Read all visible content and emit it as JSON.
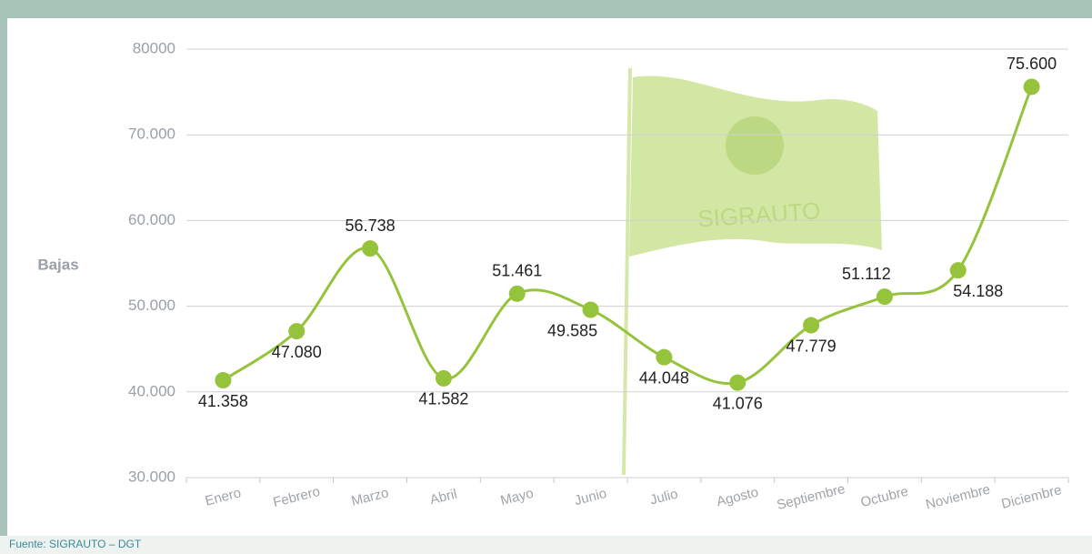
{
  "chart_data": {
    "type": "line",
    "y_axis_label": "Bajas",
    "source": "Fuente: SIGRAUTO – DGT",
    "watermark": "SIGRAUTO",
    "categories": [
      "Enero",
      "Febrero",
      "Marzo",
      "Abril",
      "Mayo",
      "Junio",
      "Julio",
      "Agosto",
      "Septiembre",
      "Octubre",
      "Noviembre",
      "Diciembre"
    ],
    "values": [
      41358,
      47080,
      56738,
      41582,
      51461,
      49585,
      44048,
      41076,
      47779,
      51112,
      54188,
      75600
    ],
    "value_labels": [
      "41.358",
      "47.080",
      "56.738",
      "41.582",
      "51.461",
      "49.585",
      "44.048",
      "41.076",
      "47.779",
      "51.112",
      "54.188",
      "75.600"
    ],
    "color": "#96c33c",
    "ylim": [
      30000,
      80000
    ],
    "yticks": [
      {
        "value": 30000,
        "label": "30.000"
      },
      {
        "value": 40000,
        "label": "40.000"
      },
      {
        "value": 50000,
        "label": "50.000"
      },
      {
        "value": 60000,
        "label": "60.000"
      },
      {
        "value": 70000,
        "label": "70.000"
      },
      80000
    ],
    "grid": true
  }
}
